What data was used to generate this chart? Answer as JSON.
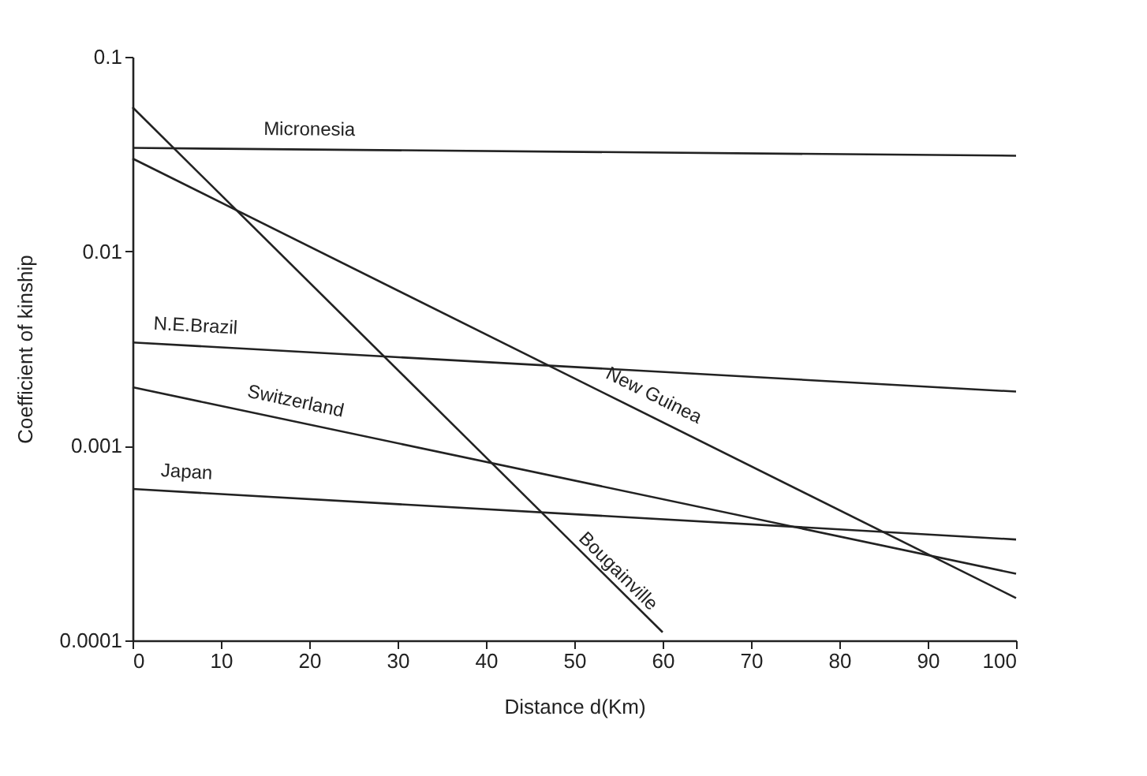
{
  "chart_data": {
    "type": "line",
    "xlabel": "Distance d(Km)",
    "ylabel": "Coefficient of kinship",
    "log": "y",
    "xlim": [
      0,
      100
    ],
    "xticks": [
      0,
      10,
      20,
      30,
      40,
      50,
      60,
      70,
      80,
      90,
      100
    ],
    "ylim": [
      0.0001,
      0.1
    ],
    "yticks": [
      0.0001,
      0.001,
      0.01,
      0.1
    ],
    "grid": false,
    "legend": false,
    "marker": "none",
    "line_style": "solid",
    "series": [
      {
        "name": "Micronesia",
        "color": "#222222",
        "x": [
          0,
          100
        ],
        "values": [
          0.034,
          0.031
        ]
      },
      {
        "name": "New Guinea",
        "color": "#222222",
        "x": [
          0,
          100
        ],
        "values": [
          0.03,
          0.000165
        ]
      },
      {
        "name": "Bougainville",
        "color": "#222222",
        "x": [
          0,
          60
        ],
        "values": [
          0.055,
          0.00011
        ]
      },
      {
        "name": "N.E.Brazil",
        "color": "#222222",
        "x": [
          0,
          100
        ],
        "values": [
          0.0034,
          0.0019
        ]
      },
      {
        "name": "Switzerland",
        "color": "#222222",
        "x": [
          0,
          100
        ],
        "values": [
          0.002,
          0.00022
        ]
      },
      {
        "name": "Japan",
        "color": "#222222",
        "x": [
          0,
          100
        ],
        "values": [
          0.0006,
          0.00033
        ]
      }
    ]
  }
}
